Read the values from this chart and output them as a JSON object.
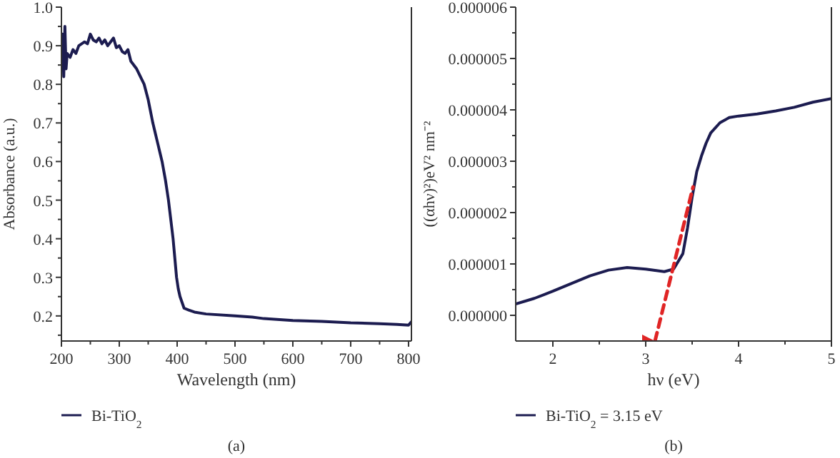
{
  "chart_data": [
    {
      "type": "line",
      "xlabel": "Wavelength (nm)",
      "ylabel": "Absorbance (a.u.)",
      "annotations": [
        "(a)"
      ],
      "legend": "bottom",
      "xlim": [
        200,
        805
      ],
      "ylim": [
        0.135,
        1.0
      ],
      "xticks": [
        200,
        {
          "value": 250,
          "label": null
        },
        300,
        {
          "value": 350,
          "label": null
        },
        400,
        {
          "value": 450,
          "label": null
        },
        500,
        {
          "value": 550,
          "label": null
        },
        600,
        {
          "value": 650,
          "label": null
        },
        700,
        {
          "value": 750,
          "label": null
        },
        800
      ],
      "yticks": [
        {
          "value": 0.15,
          "label": null
        },
        0.2,
        {
          "value": 0.25,
          "label": null
        },
        0.3,
        {
          "value": 0.35,
          "label": null
        },
        0.4,
        {
          "value": 0.45,
          "label": null
        },
        0.5,
        {
          "value": 0.55,
          "label": null
        },
        0.6,
        {
          "value": 0.65,
          "label": null
        },
        0.7,
        {
          "value": 0.75,
          "label": null
        },
        0.8,
        {
          "value": 0.85,
          "label": null
        },
        0.9,
        {
          "value": 0.95,
          "label": null
        },
        {
          "value": 1.0,
          "label": "1.0"
        }
      ],
      "series": [
        {
          "name": "Bi-TiO$_{2}$",
          "color": "#1c1c50",
          "x": [
            200,
            202,
            204,
            206,
            208,
            210,
            215,
            220,
            225,
            230,
            240,
            245,
            250,
            255,
            260,
            265,
            270,
            275,
            280,
            285,
            290,
            295,
            300,
            305,
            310,
            315,
            320,
            330,
            343,
            350,
            358,
            366,
            374,
            380,
            385,
            389,
            393,
            396,
            399,
            402,
            405,
            412,
            420,
            430,
            450,
            500,
            530,
            550,
            600,
            650,
            700,
            750,
            780,
            800,
            805
          ],
          "values": [
            0.86,
            0.93,
            0.82,
            0.95,
            0.84,
            0.88,
            0.87,
            0.89,
            0.88,
            0.9,
            0.91,
            0.905,
            0.93,
            0.915,
            0.91,
            0.92,
            0.905,
            0.915,
            0.9,
            0.91,
            0.92,
            0.895,
            0.9,
            0.885,
            0.88,
            0.89,
            0.86,
            0.84,
            0.8,
            0.76,
            0.7,
            0.65,
            0.6,
            0.55,
            0.5,
            0.45,
            0.4,
            0.35,
            0.3,
            0.27,
            0.25,
            0.22,
            0.215,
            0.21,
            0.205,
            0.2,
            0.197,
            0.193,
            0.188,
            0.186,
            0.182,
            0.18,
            0.178,
            0.176,
            0.185
          ]
        }
      ]
    },
    {
      "type": "line",
      "xlabel": "hν (eV)",
      "ylabel": "((αhν)²)eV² nm⁻²",
      "annotations": [
        "(b)"
      ],
      "legend": "bottom",
      "xlim": [
        1.6,
        5
      ],
      "ylim": [
        -5e-07,
        6e-06
      ],
      "xticks": [
        2,
        {
          "value": 2.5,
          "label": null
        },
        3,
        {
          "value": 3.5,
          "label": null
        },
        4,
        {
          "value": 4.5,
          "label": null
        },
        5
      ],
      "yticks": [
        {
          "value": 0,
          "label": "0.000000"
        },
        {
          "value": 5e-07,
          "label": null
        },
        {
          "value": 1e-06,
          "label": "0.000001"
        },
        {
          "value": 1.5e-06,
          "label": null
        },
        {
          "value": 2e-06,
          "label": "0.000002"
        },
        {
          "value": 2.5e-06,
          "label": null
        },
        {
          "value": 3e-06,
          "label": "0.000003"
        },
        {
          "value": 3.5e-06,
          "label": null
        },
        {
          "value": 4e-06,
          "label": "0.000004"
        },
        {
          "value": 4.5e-06,
          "label": null
        },
        {
          "value": 5e-06,
          "label": "0.000005"
        },
        {
          "value": 5.5e-06,
          "label": null
        },
        {
          "value": 6e-06,
          "label": "0.000006"
        }
      ],
      "series": [
        {
          "name": "Bi-TiO$_{2}$ = 3.15 eV",
          "color": "#1c1c50",
          "x": [
            1.6,
            1.8,
            2.0,
            2.2,
            2.4,
            2.6,
            2.8,
            3.0,
            3.2,
            3.3,
            3.4,
            3.45,
            3.5,
            3.55,
            3.6,
            3.65,
            3.7,
            3.8,
            3.9,
            4.0,
            4.2,
            4.4,
            4.6,
            4.8,
            5.0
          ],
          "values": [
            2.2e-07,
            3.3e-07,
            4.7e-07,
            6.2e-07,
            7.7e-07,
            8.8e-07,
            9.3e-07,
            9e-07,
            8.5e-07,
            9e-07,
            1.2e-06,
            1.7e-06,
            2.3e-06,
            2.8e-06,
            3.1e-06,
            3.35e-06,
            3.55e-06,
            3.75e-06,
            3.85e-06,
            3.88e-06,
            3.92e-06,
            3.98e-06,
            4.05e-06,
            4.15e-06,
            4.22e-06
          ]
        },
        {
          "type": "line",
          "color": "#e02525",
          "line_style": "dashed",
          "x": [
            3.1,
            3.51
          ],
          "values": [
            -5e-07,
            2.5e-06
          ]
        }
      ]
    }
  ]
}
